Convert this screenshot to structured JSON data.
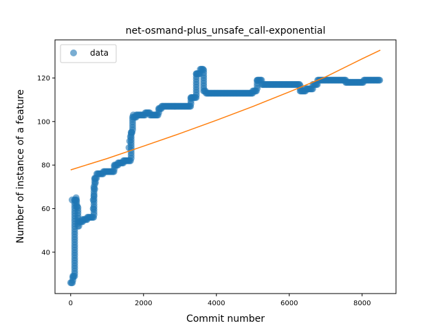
{
  "chart_data": {
    "type": "scatter",
    "title": "net-osmand-plus_unsafe_call-exponential",
    "xlabel": "Commit number",
    "ylabel": "Number of instance of a feature",
    "xlim": [
      -430,
      8930
    ],
    "ylim": [
      21,
      137.5
    ],
    "xticks": [
      0,
      2000,
      4000,
      6000,
      8000
    ],
    "yticks": [
      40,
      60,
      80,
      100,
      120
    ],
    "grid": false,
    "legend": {
      "placement": "top-left",
      "entries": [
        "data"
      ]
    },
    "colors": {
      "data": "#1f77b4",
      "fit": "#ff7f0e"
    },
    "series": [
      {
        "name": "data",
        "kind": "scatter",
        "segments": [
          {
            "x0": 0,
            "x1": 60,
            "y": 26
          },
          {
            "x0": 60,
            "x1": 110,
            "y": 29
          },
          {
            "x0": 110,
            "x1": 160,
            "y": 64
          },
          {
            "x0": 160,
            "x1": 200,
            "y": 61
          },
          {
            "x0": 200,
            "x1": 230,
            "y": 52
          },
          {
            "x0": 230,
            "x1": 330,
            "y": 54
          },
          {
            "x0": 330,
            "x1": 460,
            "y": 55
          },
          {
            "x0": 460,
            "x1": 640,
            "y": 56
          },
          {
            "x0": 640,
            "x1": 660,
            "y": 70
          },
          {
            "x0": 660,
            "x1": 720,
            "y": 74
          },
          {
            "x0": 720,
            "x1": 900,
            "y": 76
          },
          {
            "x0": 900,
            "x1": 1200,
            "y": 77
          },
          {
            "x0": 1200,
            "x1": 1300,
            "y": 80
          },
          {
            "x0": 1300,
            "x1": 1450,
            "y": 81
          },
          {
            "x0": 1450,
            "x1": 1660,
            "y": 82
          },
          {
            "x0": 1660,
            "x1": 1700,
            "y": 95
          },
          {
            "x0": 1700,
            "x1": 1800,
            "y": 102
          },
          {
            "x0": 1800,
            "x1": 2050,
            "y": 103
          },
          {
            "x0": 2050,
            "x1": 2180,
            "y": 104
          },
          {
            "x0": 2180,
            "x1": 2420,
            "y": 103
          },
          {
            "x0": 2420,
            "x1": 2500,
            "y": 106
          },
          {
            "x0": 2500,
            "x1": 3300,
            "y": 107
          },
          {
            "x0": 3300,
            "x1": 3450,
            "y": 111
          },
          {
            "x0": 3450,
            "x1": 3560,
            "y": 122
          },
          {
            "x0": 3560,
            "x1": 3650,
            "y": 124
          },
          {
            "x0": 3650,
            "x1": 3720,
            "y": 114
          },
          {
            "x0": 3720,
            "x1": 5000,
            "y": 113
          },
          {
            "x0": 5000,
            "x1": 5120,
            "y": 114
          },
          {
            "x0": 5120,
            "x1": 5250,
            "y": 119
          },
          {
            "x0": 5250,
            "x1": 6300,
            "y": 117
          },
          {
            "x0": 6300,
            "x1": 6450,
            "y": 114
          },
          {
            "x0": 6450,
            "x1": 6650,
            "y": 115
          },
          {
            "x0": 6650,
            "x1": 6780,
            "y": 117
          },
          {
            "x0": 6780,
            "x1": 7550,
            "y": 119
          },
          {
            "x0": 7550,
            "x1": 8050,
            "y": 118
          },
          {
            "x0": 8050,
            "x1": 8500,
            "y": 119
          }
        ],
        "outliers": [
          {
            "x": 40,
            "y": 64
          },
          {
            "x": 150,
            "y": 65
          },
          {
            "x": 620,
            "y": 60
          },
          {
            "x": 620,
            "y": 64
          },
          {
            "x": 640,
            "y": 66
          },
          {
            "x": 660,
            "y": 69
          },
          {
            "x": 680,
            "y": 72
          },
          {
            "x": 1600,
            "y": 88
          },
          {
            "x": 1620,
            "y": 91
          },
          {
            "x": 1640,
            "y": 93
          },
          {
            "x": 1670,
            "y": 95
          },
          {
            "x": 1720,
            "y": 103
          }
        ]
      },
      {
        "name": "",
        "kind": "line",
        "x": [
          0,
          1000,
          2000,
          3000,
          4000,
          5000,
          6000,
          7000,
          8000,
          8500
        ],
        "y": [
          77.8,
          83.0,
          88.7,
          94.5,
          100.6,
          106.9,
          113.6,
          120.5,
          128.8,
          132.8
        ]
      }
    ]
  }
}
